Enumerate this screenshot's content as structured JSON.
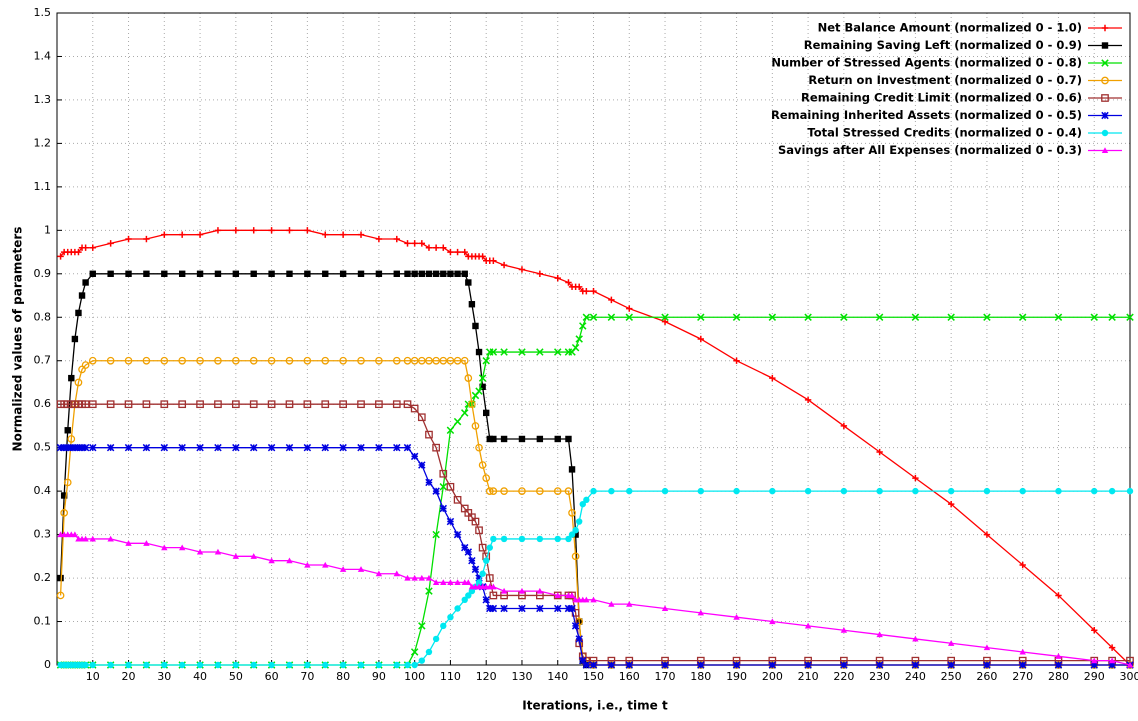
{
  "chart_data": {
    "type": "line",
    "xlabel": "Iterations, i.e., time t",
    "ylabel": "Normalized values of parameters",
    "xlim": [
      0,
      300
    ],
    "xticks": [
      10,
      20,
      30,
      40,
      50,
      60,
      70,
      80,
      90,
      100,
      110,
      120,
      130,
      140,
      150,
      160,
      170,
      180,
      190,
      200,
      210,
      220,
      230,
      240,
      250,
      260,
      270,
      280,
      290,
      300
    ],
    "ylim": [
      0,
      1.5
    ],
    "yticks": [
      0,
      0.1,
      0.2,
      0.3,
      0.4,
      0.5,
      0.6,
      0.7,
      0.8,
      0.9,
      1,
      1.1,
      1.2,
      1.3,
      1.4,
      1.5
    ],
    "grid": true,
    "legend": "top-right",
    "x": [
      1,
      2,
      3,
      4,
      5,
      6,
      7,
      8,
      10,
      15,
      20,
      25,
      30,
      35,
      40,
      45,
      50,
      55,
      60,
      65,
      70,
      75,
      80,
      85,
      90,
      95,
      98,
      100,
      102,
      104,
      106,
      108,
      110,
      112,
      114,
      115,
      116,
      117,
      118,
      119,
      120,
      121,
      122,
      125,
      130,
      135,
      140,
      143,
      144,
      145,
      146,
      147,
      148,
      150,
      155,
      160,
      170,
      180,
      190,
      200,
      210,
      220,
      230,
      240,
      250,
      260,
      270,
      280,
      290,
      295,
      300
    ],
    "series": [
      {
        "name": "Net Balance Amount (normalized 0 - 1.0)",
        "color": "#ff0000",
        "marker": "plus",
        "values": [
          0.94,
          0.95,
          0.95,
          0.95,
          0.95,
          0.95,
          0.96,
          0.96,
          0.96,
          0.97,
          0.98,
          0.98,
          0.99,
          0.99,
          0.99,
          1,
          1,
          1,
          1,
          1,
          1,
          0.99,
          0.99,
          0.99,
          0.98,
          0.98,
          0.97,
          0.97,
          0.97,
          0.96,
          0.96,
          0.96,
          0.95,
          0.95,
          0.95,
          0.94,
          0.94,
          0.94,
          0.94,
          0.94,
          0.93,
          0.93,
          0.93,
          0.92,
          0.91,
          0.9,
          0.89,
          0.88,
          0.87,
          0.87,
          0.87,
          0.86,
          0.86,
          0.86,
          0.84,
          0.82,
          0.79,
          0.75,
          0.7,
          0.66,
          0.61,
          0.55,
          0.49,
          0.43,
          0.37,
          0.3,
          0.23,
          0.16,
          0.08,
          0.04,
          0
        ]
      },
      {
        "name": "Remaining Saving Left (normalized 0 - 0.9)",
        "color": "#000000",
        "marker": "square",
        "values": [
          0.2,
          0.39,
          0.54,
          0.66,
          0.75,
          0.81,
          0.85,
          0.88,
          0.9,
          0.9,
          0.9,
          0.9,
          0.9,
          0.9,
          0.9,
          0.9,
          0.9,
          0.9,
          0.9,
          0.9,
          0.9,
          0.9,
          0.9,
          0.9,
          0.9,
          0.9,
          0.9,
          0.9,
          0.9,
          0.9,
          0.9,
          0.9,
          0.9,
          0.9,
          0.9,
          0.88,
          0.83,
          0.78,
          0.72,
          0.64,
          0.58,
          0.52,
          0.52,
          0.52,
          0.52,
          0.52,
          0.52,
          0.52,
          0.45,
          0.3,
          0.1,
          0.01,
          0,
          0,
          0,
          0,
          0,
          0,
          0,
          0,
          0,
          0,
          0,
          0,
          0,
          0,
          0,
          0,
          0,
          0,
          0
        ]
      },
      {
        "name": "Number of Stressed Agents (normalized 0 - 0.8)",
        "color": "#00e000",
        "marker": "cross",
        "values": [
          0,
          0,
          0,
          0,
          0,
          0,
          0,
          0,
          0,
          0,
          0,
          0,
          0,
          0,
          0,
          0,
          0,
          0,
          0,
          0,
          0,
          0,
          0,
          0,
          0,
          0,
          0,
          0.03,
          0.09,
          0.17,
          0.3,
          0.41,
          0.54,
          0.56,
          0.58,
          0.6,
          0.6,
          0.62,
          0.63,
          0.66,
          0.7,
          0.72,
          0.72,
          0.72,
          0.72,
          0.72,
          0.72,
          0.72,
          0.72,
          0.73,
          0.75,
          0.78,
          0.8,
          0.8,
          0.8,
          0.8,
          0.8,
          0.8,
          0.8,
          0.8,
          0.8,
          0.8,
          0.8,
          0.8,
          0.8,
          0.8,
          0.8,
          0.8,
          0.8,
          0.8,
          0.8
        ]
      },
      {
        "name": "Return on Investment (normalized 0 - 0.7)",
        "color": "#f0a000",
        "marker": "circle",
        "values": [
          0.16,
          0.35,
          0.42,
          0.52,
          0.6,
          0.65,
          0.68,
          0.69,
          0.7,
          0.7,
          0.7,
          0.7,
          0.7,
          0.7,
          0.7,
          0.7,
          0.7,
          0.7,
          0.7,
          0.7,
          0.7,
          0.7,
          0.7,
          0.7,
          0.7,
          0.7,
          0.7,
          0.7,
          0.7,
          0.7,
          0.7,
          0.7,
          0.7,
          0.7,
          0.7,
          0.66,
          0.6,
          0.55,
          0.5,
          0.46,
          0.43,
          0.4,
          0.4,
          0.4,
          0.4,
          0.4,
          0.4,
          0.4,
          0.35,
          0.25,
          0.1,
          0.02,
          0.01,
          0,
          0,
          0,
          0,
          0,
          0,
          0,
          0,
          0,
          0,
          0,
          0,
          0,
          0,
          0,
          0,
          0,
          0
        ]
      },
      {
        "name": "Remaining Credit Limit (normalized 0 - 0.6)",
        "color": "#a03030",
        "marker": "square-open",
        "values": [
          0.6,
          0.6,
          0.6,
          0.6,
          0.6,
          0.6,
          0.6,
          0.6,
          0.6,
          0.6,
          0.6,
          0.6,
          0.6,
          0.6,
          0.6,
          0.6,
          0.6,
          0.6,
          0.6,
          0.6,
          0.6,
          0.6,
          0.6,
          0.6,
          0.6,
          0.6,
          0.6,
          0.59,
          0.57,
          0.53,
          0.5,
          0.44,
          0.41,
          0.38,
          0.36,
          0.35,
          0.34,
          0.33,
          0.31,
          0.27,
          0.25,
          0.2,
          0.16,
          0.16,
          0.16,
          0.16,
          0.16,
          0.16,
          0.16,
          0.12,
          0.05,
          0.02,
          0.01,
          0.01,
          0.01,
          0.01,
          0.01,
          0.01,
          0.01,
          0.01,
          0.01,
          0.01,
          0.01,
          0.01,
          0.01,
          0.01,
          0.01,
          0.01,
          0.01,
          0.01,
          0.01
        ]
      },
      {
        "name": "Remaining Inherited Assets (normalized 0 - 0.5)",
        "color": "#0000e0",
        "marker": "star",
        "values": [
          0.5,
          0.5,
          0.5,
          0.5,
          0.5,
          0.5,
          0.5,
          0.5,
          0.5,
          0.5,
          0.5,
          0.5,
          0.5,
          0.5,
          0.5,
          0.5,
          0.5,
          0.5,
          0.5,
          0.5,
          0.5,
          0.5,
          0.5,
          0.5,
          0.5,
          0.5,
          0.5,
          0.48,
          0.46,
          0.42,
          0.4,
          0.36,
          0.33,
          0.3,
          0.27,
          0.26,
          0.24,
          0.22,
          0.2,
          0.18,
          0.15,
          0.13,
          0.13,
          0.13,
          0.13,
          0.13,
          0.13,
          0.13,
          0.13,
          0.09,
          0.06,
          0.01,
          0,
          0,
          0,
          0,
          0,
          0,
          0,
          0,
          0,
          0,
          0,
          0,
          0,
          0,
          0,
          0,
          0,
          0,
          0
        ]
      },
      {
        "name": "Total Stressed Credits (normalized 0 - 0.4)",
        "color": "#00e8f0",
        "marker": "dot",
        "values": [
          0,
          0,
          0,
          0,
          0,
          0,
          0,
          0,
          0,
          0,
          0,
          0,
          0,
          0,
          0,
          0,
          0,
          0,
          0,
          0,
          0,
          0,
          0,
          0,
          0,
          0,
          0,
          0,
          0.01,
          0.03,
          0.06,
          0.09,
          0.11,
          0.13,
          0.15,
          0.16,
          0.17,
          0.18,
          0.19,
          0.21,
          0.24,
          0.27,
          0.29,
          0.29,
          0.29,
          0.29,
          0.29,
          0.29,
          0.3,
          0.31,
          0.33,
          0.37,
          0.38,
          0.4,
          0.4,
          0.4,
          0.4,
          0.4,
          0.4,
          0.4,
          0.4,
          0.4,
          0.4,
          0.4,
          0.4,
          0.4,
          0.4,
          0.4,
          0.4,
          0.4,
          0.4
        ]
      },
      {
        "name": "Savings after All Expenses (normalized 0 - 0.3)",
        "color": "#ff00ff",
        "marker": "triangle",
        "values": [
          0.3,
          0.3,
          0.3,
          0.3,
          0.3,
          0.29,
          0.29,
          0.29,
          0.29,
          0.29,
          0.28,
          0.28,
          0.27,
          0.27,
          0.26,
          0.26,
          0.25,
          0.25,
          0.24,
          0.24,
          0.23,
          0.23,
          0.22,
          0.22,
          0.21,
          0.21,
          0.2,
          0.2,
          0.2,
          0.2,
          0.19,
          0.19,
          0.19,
          0.19,
          0.19,
          0.19,
          0.18,
          0.18,
          0.18,
          0.18,
          0.18,
          0.18,
          0.18,
          0.17,
          0.17,
          0.17,
          0.16,
          0.16,
          0.16,
          0.15,
          0.15,
          0.15,
          0.15,
          0.15,
          0.14,
          0.14,
          0.13,
          0.12,
          0.11,
          0.1,
          0.09,
          0.08,
          0.07,
          0.06,
          0.05,
          0.04,
          0.03,
          0.02,
          0.01,
          0.01,
          0
        ]
      }
    ]
  }
}
